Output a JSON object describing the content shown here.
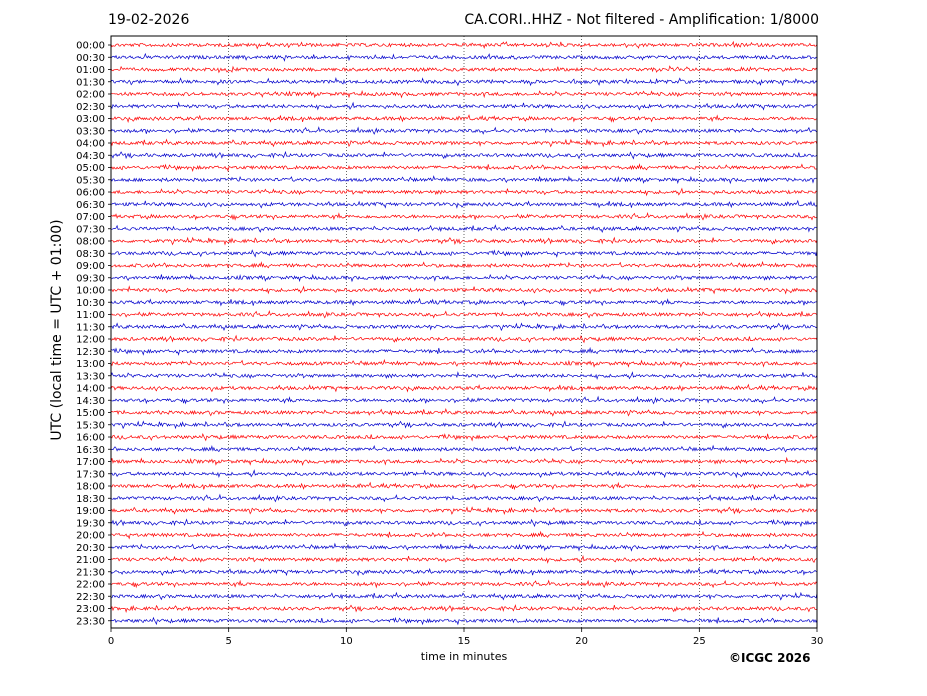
{
  "header": {
    "date": "19-02-2026",
    "title": "CA.CORI..HHZ - Not filtered - Amplification: 1/8000"
  },
  "footer": {
    "copyright": "©ICGC 2026"
  },
  "chart_data": {
    "type": "line",
    "title": "CA.CORI..HHZ - Not filtered - Amplification: 1/8000",
    "xlabel": "time in minutes",
    "ylabel": "UTC (local time = UTC + 01:00)",
    "xlim": [
      0,
      30
    ],
    "xticks": [
      0,
      5,
      10,
      15,
      20,
      25,
      30
    ],
    "grid": "vertical dotted lines at x ticks",
    "row_labels": [
      "00:00",
      "00:30",
      "01:00",
      "01:30",
      "02:00",
      "02:30",
      "03:00",
      "03:30",
      "04:00",
      "04:30",
      "05:00",
      "05:30",
      "06:00",
      "06:30",
      "07:00",
      "07:30",
      "08:00",
      "08:30",
      "09:00",
      "09:30",
      "10:00",
      "10:30",
      "11:00",
      "11:30",
      "12:00",
      "12:30",
      "13:00",
      "13:30",
      "14:00",
      "14:30",
      "15:00",
      "15:30",
      "16:00",
      "16:30",
      "17:00",
      "17:30",
      "18:00",
      "18:30",
      "19:00",
      "19:30",
      "20:00",
      "20:30",
      "21:00",
      "21:30",
      "22:00",
      "22:30",
      "23:00",
      "23:30"
    ],
    "row_colors": [
      "#ff0000",
      "#0000cc"
    ],
    "series_description": "seismic noise trace per 30-minute row, colors alternate by hour"
  }
}
